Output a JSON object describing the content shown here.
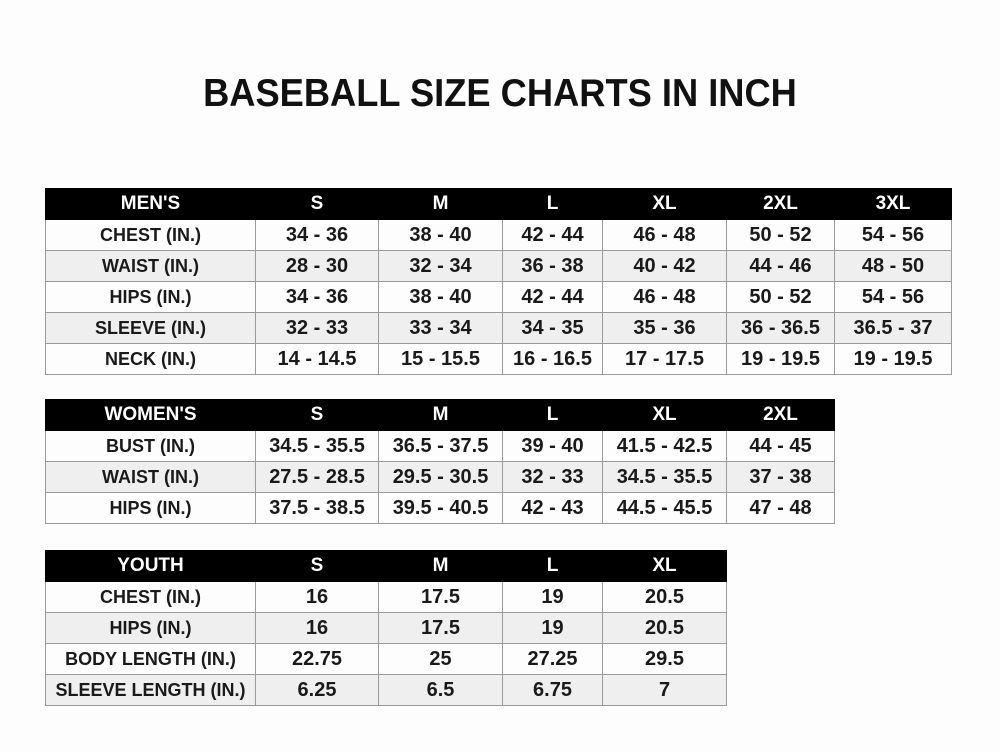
{
  "title": "BASEBALL SIZE CHARTS IN INCH",
  "colors": {
    "header_bg": "#000000",
    "header_text": "#ffffff",
    "alt_row": "#efefef"
  },
  "tables": [
    {
      "id": "mens",
      "header": [
        "MEN'S",
        "S",
        "M",
        "L",
        "XL",
        "2XL",
        "3XL"
      ],
      "rows": [
        [
          "CHEST (IN.)",
          "34 - 36",
          "38 - 40",
          "42 - 44",
          "46 - 48",
          "50 - 52",
          "54 - 56"
        ],
        [
          "WAIST (IN.)",
          "28 - 30",
          "32 - 34",
          "36 - 38",
          "40 - 42",
          "44 - 46",
          "48 - 50"
        ],
        [
          "HIPS (IN.)",
          "34 - 36",
          "38 - 40",
          "42 - 44",
          "46 - 48",
          "50 - 52",
          "54 - 56"
        ],
        [
          "SLEEVE (IN.)",
          "32 - 33",
          "33 - 34",
          "34 - 35",
          "35 - 36",
          "36 - 36.5",
          "36.5 - 37"
        ],
        [
          "NECK (IN.)",
          "14 - 14.5",
          "15 - 15.5",
          "16 - 16.5",
          "17 - 17.5",
          "19 - 19.5",
          "19 - 19.5"
        ]
      ]
    },
    {
      "id": "womens",
      "header": [
        "WOMEN'S",
        "S",
        "M",
        "L",
        "XL",
        "2XL"
      ],
      "rows": [
        [
          "BUST (IN.)",
          "34.5 - 35.5",
          "36.5 - 37.5",
          "39 - 40",
          "41.5 - 42.5",
          "44 - 45"
        ],
        [
          "WAIST (IN.)",
          "27.5 - 28.5",
          "29.5 - 30.5",
          "32 - 33",
          "34.5 - 35.5",
          "37 - 38"
        ],
        [
          "HIPS (IN.)",
          "37.5 - 38.5",
          "39.5 - 40.5",
          "42 - 43",
          "44.5 - 45.5",
          "47 - 48"
        ]
      ]
    },
    {
      "id": "youth",
      "header": [
        "YOUTH",
        "S",
        "M",
        "L",
        "XL"
      ],
      "rows": [
        [
          "CHEST (IN.)",
          "16",
          "17.5",
          "19",
          "20.5"
        ],
        [
          "HIPS (IN.)",
          "16",
          "17.5",
          "19",
          "20.5"
        ],
        [
          "BODY LENGTH (IN.)",
          "22.75",
          "25",
          "27.25",
          "29.5"
        ],
        [
          "SLEEVE LENGTH (IN.)",
          "6.25",
          "6.5",
          "6.75",
          "7"
        ]
      ]
    }
  ]
}
